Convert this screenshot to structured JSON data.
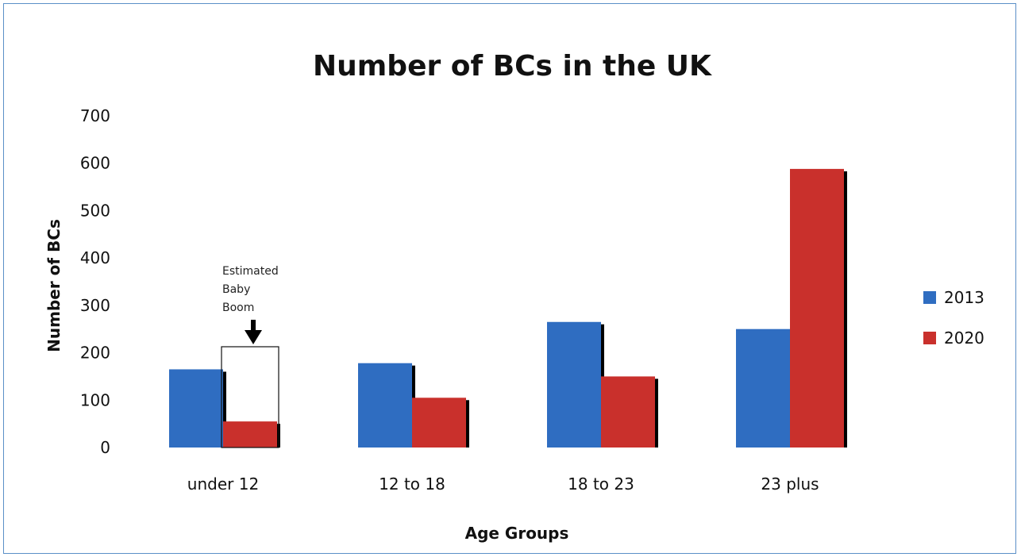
{
  "chart_data": {
    "type": "bar",
    "title": "Number of BCs in the UK",
    "xlabel": "Age Groups",
    "ylabel": "Number of BCs",
    "categories": [
      "under 12",
      "12 to 18",
      "18 to 23",
      "23 plus"
    ],
    "series": [
      {
        "name": "2013",
        "values": [
          165,
          178,
          265,
          250
        ],
        "color": "#2f6dc1"
      },
      {
        "name": "2020",
        "values": [
          55,
          105,
          150,
          588
        ],
        "color": "#c9302c"
      }
    ],
    "ylim": [
      0,
      700
    ],
    "yticks": [
      "0",
      "100",
      "200",
      "300",
      "400",
      "500",
      "600",
      "700"
    ],
    "grid": false,
    "legend_position": "right",
    "annotation": {
      "lines": [
        "Estimated",
        "Baby",
        "Boom"
      ],
      "category": "under 12",
      "series": "2020"
    }
  }
}
